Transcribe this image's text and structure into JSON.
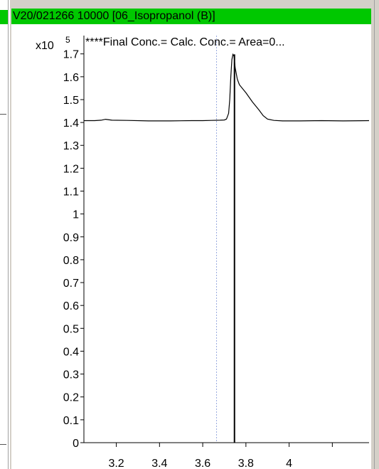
{
  "title": "V20/021266 10000 [06_Isopropanol (B)]",
  "colors": {
    "title_bar": "#00c800",
    "trace": "#000000",
    "marker_line": "#9aaae0"
  },
  "chart_data": {
    "type": "line",
    "annotation": "****Final Conc.= Calc. Conc.= Area=0...",
    "y_multiplier_label": "x10",
    "y_multiplier_exponent": "5",
    "xlim": [
      3.05,
      4.37
    ],
    "ylim": [
      0,
      1.78
    ],
    "x_ticks": [
      3.2,
      3.4,
      3.6,
      3.8,
      4.0,
      4.2
    ],
    "x_tick_labels": [
      "3.2",
      "3.4",
      "3.6",
      "3.8",
      "4",
      ""
    ],
    "y_ticks": [
      0,
      0.1,
      0.2,
      0.3,
      0.4,
      0.5,
      0.6,
      0.7,
      0.8,
      0.9,
      1,
      1.1,
      1.2,
      1.3,
      1.4,
      1.5,
      1.6,
      1.7
    ],
    "y_tick_labels": [
      "0",
      "0.1",
      "0.2",
      "0.3",
      "0.4",
      "0.5",
      "0.6",
      "0.7",
      "0.8",
      "0.9",
      "1",
      "1.1",
      "1.2",
      "1.3",
      "1.4",
      "1.5",
      "1.6",
      "1.7"
    ],
    "series": [
      {
        "x": [
          3.05,
          3.1,
          3.13,
          3.15,
          3.18,
          3.25,
          3.35,
          3.45,
          3.55,
          3.6,
          3.64,
          3.68,
          3.7,
          3.71,
          3.72,
          3.725,
          3.73,
          3.735,
          3.74,
          3.745,
          3.75,
          3.76,
          3.77,
          3.8,
          3.83,
          3.86,
          3.88,
          3.9,
          3.93,
          3.97,
          4.05,
          4.15,
          4.25,
          4.37
        ],
        "y": [
          1.408,
          1.408,
          1.41,
          1.414,
          1.41,
          1.409,
          1.407,
          1.407,
          1.408,
          1.408,
          1.409,
          1.41,
          1.411,
          1.415,
          1.44,
          1.5,
          1.6,
          1.675,
          1.698,
          1.69,
          1.64,
          1.59,
          1.565,
          1.53,
          1.49,
          1.455,
          1.43,
          1.415,
          1.409,
          1.407,
          1.407,
          1.408,
          1.407,
          1.408
        ]
      }
    ],
    "markers": [
      {
        "x": 3.664,
        "style": "dotted"
      },
      {
        "x": 3.747,
        "style": "solid",
        "y_from": 0,
        "y_to": 1.698
      }
    ]
  }
}
